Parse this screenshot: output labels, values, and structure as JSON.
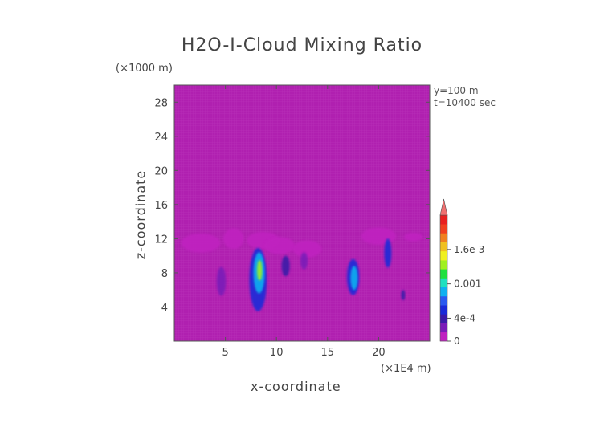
{
  "chart_data": {
    "type": "heatmap",
    "title": "H2O-I-Cloud Mixing Ratio",
    "xlabel": "x-coordinate",
    "ylabel": "z-coordinate",
    "x_unit": "(×1E4 m)",
    "y_unit": "(×1000 m)",
    "annotations": [
      "y=100 m",
      "t=10400 sec"
    ],
    "xlim": [
      0,
      25
    ],
    "ylim": [
      0,
      30
    ],
    "x_ticks": [
      5,
      10,
      15,
      20
    ],
    "y_ticks": [
      4,
      8,
      12,
      16,
      20,
      24,
      28
    ],
    "colorbar": {
      "range": [
        0,
        0.0022
      ],
      "tick_values": [
        0,
        0.0004,
        0.001,
        0.0016
      ],
      "tick_labels": [
        "0",
        "4e-4",
        "0.001",
        "1.6e-3"
      ],
      "colors": [
        "#c020c0",
        "#7a1ab8",
        "#3a1aa8",
        "#1a2ad8",
        "#2a5af0",
        "#10b0f0",
        "#20e0c0",
        "#20e040",
        "#a0f020",
        "#f0f020",
        "#f0c020",
        "#f08020",
        "#f04020",
        "#e82020"
      ],
      "extend": "max",
      "extend_color": "#f07070"
    },
    "background_color": "#b020b0",
    "features": [
      {
        "x": 2.6,
        "z": 11.5,
        "rx": 1.9,
        "rz": 1.1,
        "level": 0.0001
      },
      {
        "x": 5.8,
        "z": 12.0,
        "rx": 1.0,
        "rz": 1.2,
        "level": 0.00015
      },
      {
        "x": 8.7,
        "z": 11.8,
        "rx": 1.6,
        "rz": 1.0,
        "level": 0.0001
      },
      {
        "x": 10.3,
        "z": 11.2,
        "rx": 1.5,
        "rz": 1.0,
        "level": 0.00015
      },
      {
        "x": 13.0,
        "z": 10.8,
        "rx": 1.4,
        "rz": 1.0,
        "level": 0.0001
      },
      {
        "x": 20.0,
        "z": 12.3,
        "rx": 1.7,
        "rz": 1.0,
        "level": 0.0001
      },
      {
        "x": 23.4,
        "z": 12.2,
        "rx": 0.9,
        "rz": 0.5,
        "level": 0.0001
      },
      {
        "x": 4.6,
        "z": 7.0,
        "rx": 0.45,
        "rz": 1.7,
        "level": 0.0003
      },
      {
        "x": 8.2,
        "z": 7.2,
        "rx": 0.85,
        "rz": 3.7,
        "level": 0.0005
      },
      {
        "x": 8.3,
        "z": 8.0,
        "rx": 0.55,
        "rz": 2.4,
        "level": 0.0009
      },
      {
        "x": 8.35,
        "z": 8.3,
        "rx": 0.25,
        "rz": 1.2,
        "level": 0.0013
      },
      {
        "x": 10.9,
        "z": 8.8,
        "rx": 0.4,
        "rz": 1.2,
        "level": 0.0004
      },
      {
        "x": 12.7,
        "z": 9.4,
        "rx": 0.35,
        "rz": 1.0,
        "level": 0.0003
      },
      {
        "x": 17.5,
        "z": 7.5,
        "rx": 0.6,
        "rz": 2.1,
        "level": 0.0005
      },
      {
        "x": 17.6,
        "z": 7.4,
        "rx": 0.35,
        "rz": 1.4,
        "level": 0.0009
      },
      {
        "x": 20.9,
        "z": 10.3,
        "rx": 0.35,
        "rz": 1.7,
        "level": 0.0005
      },
      {
        "x": 22.4,
        "z": 5.4,
        "rx": 0.2,
        "rz": 0.6,
        "level": 0.0004
      }
    ]
  }
}
